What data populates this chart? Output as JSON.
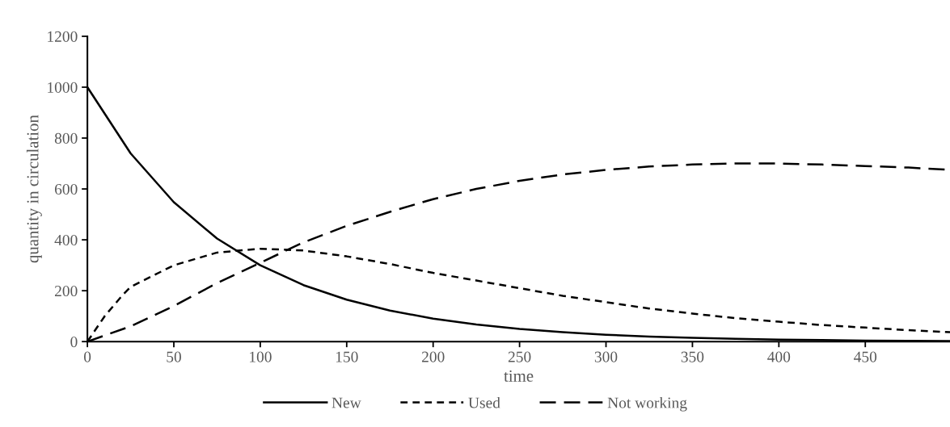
{
  "chart_data": {
    "type": "line",
    "xlabel": "time",
    "ylabel": "quantity in circulation",
    "xlim": [
      0,
      499
    ],
    "ylim": [
      0,
      1200
    ],
    "xticks": [
      0,
      50,
      100,
      150,
      200,
      250,
      300,
      350,
      400,
      450
    ],
    "yticks": [
      0,
      200,
      400,
      600,
      800,
      1000,
      1200
    ],
    "grid": false,
    "legend": "bottom",
    "marker": "none",
    "series": [
      {
        "name": "New",
        "color": "#000000",
        "line_style": "solid",
        "x": [
          0,
          25,
          50,
          75,
          100,
          125,
          150,
          175,
          200,
          225,
          250,
          275,
          300,
          325,
          350,
          375,
          400,
          425,
          450,
          475,
          499
        ],
        "values": [
          1000,
          740,
          548,
          405,
          300,
          222,
          165,
          122,
          90,
          67,
          50,
          37,
          27,
          20,
          15,
          11,
          8,
          6,
          4,
          3,
          2
        ]
      },
      {
        "name": "Used",
        "color": "#000000",
        "line_style": "dotted",
        "x": [
          0,
          10,
          20,
          25,
          50,
          75,
          100,
          125,
          150,
          175,
          200,
          225,
          250,
          275,
          300,
          325,
          350,
          375,
          400,
          425,
          450,
          475,
          499
        ],
        "values": [
          0,
          100,
          180,
          215,
          300,
          350,
          365,
          358,
          335,
          305,
          270,
          240,
          210,
          180,
          155,
          130,
          110,
          92,
          78,
          65,
          55,
          45,
          37
        ]
      },
      {
        "name": "Not working",
        "color": "#000000",
        "line_style": "dashed",
        "x": [
          0,
          25,
          50,
          75,
          100,
          125,
          150,
          175,
          200,
          225,
          250,
          275,
          300,
          325,
          350,
          375,
          400,
          425,
          450,
          475,
          499
        ],
        "values": [
          0,
          60,
          140,
          230,
          310,
          390,
          455,
          510,
          560,
          600,
          632,
          657,
          675,
          688,
          696,
          700,
          700,
          696,
          690,
          684,
          675
        ]
      }
    ]
  }
}
